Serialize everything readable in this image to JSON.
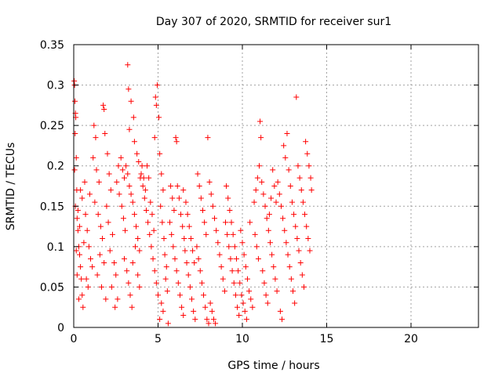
{
  "chart_data": {
    "type": "scatter",
    "title": "Day 307 of 2020, SRMTID for receiver sur1",
    "xlabel": "GPS time / hours",
    "ylabel": "SRMTID / TECUs",
    "xlim": [
      0,
      24
    ],
    "ylim": [
      0,
      0.35
    ],
    "xticks": [
      "0",
      "5",
      "10",
      "15",
      "20"
    ],
    "yticks": [
      "0",
      "0.05",
      "0.1",
      "0.15",
      "0.2",
      "0.25",
      "0.3",
      "0.35"
    ],
    "grid": true,
    "marker": "plus",
    "color": "#ff0000",
    "series": [
      {
        "points": [
          [
            0.03,
            0.305
          ],
          [
            0.05,
            0.3
          ],
          [
            0.07,
            0.28
          ],
          [
            0.1,
            0.265
          ],
          [
            0.12,
            0.26
          ],
          [
            0.08,
            0.24
          ],
          [
            0.15,
            0.21
          ],
          [
            0.05,
            0.195
          ],
          [
            0.18,
            0.17
          ],
          [
            0.1,
            0.15
          ],
          [
            0.2,
            0.135
          ],
          [
            0.25,
            0.12
          ],
          [
            0.3,
            0.1
          ],
          [
            0.15,
            0.095
          ],
          [
            0.35,
            0.09
          ],
          [
            0.4,
            0.075
          ],
          [
            0.2,
            0.065
          ],
          [
            0.45,
            0.06
          ],
          [
            0.5,
            0.04
          ],
          [
            0.3,
            0.035
          ],
          [
            0.55,
            0.025
          ],
          [
            0.25,
            0.145
          ],
          [
            0.35,
            0.125
          ],
          [
            0.6,
            0.105
          ],
          [
            0.4,
            0.17
          ],
          [
            0.5,
            0.16
          ],
          [
            0.7,
            0.14
          ],
          [
            0.8,
            0.12
          ],
          [
            0.9,
            0.1
          ],
          [
            1.0,
            0.085
          ],
          [
            1.1,
            0.075
          ],
          [
            0.75,
            0.06
          ],
          [
            0.85,
            0.05
          ],
          [
            0.65,
            0.18
          ],
          [
            0.95,
            0.165
          ],
          [
            1.2,
            0.25
          ],
          [
            1.3,
            0.235
          ],
          [
            1.15,
            0.21
          ],
          [
            1.35,
            0.195
          ],
          [
            1.5,
            0.18
          ],
          [
            1.25,
            0.155
          ],
          [
            1.45,
            0.14
          ],
          [
            1.6,
            0.125
          ],
          [
            1.7,
            0.11
          ],
          [
            1.55,
            0.09
          ],
          [
            1.8,
            0.08
          ],
          [
            1.4,
            0.065
          ],
          [
            1.65,
            0.05
          ],
          [
            1.9,
            0.035
          ],
          [
            1.75,
            0.275
          ],
          [
            1.8,
            0.27
          ],
          [
            1.85,
            0.24
          ],
          [
            2.0,
            0.215
          ],
          [
            2.1,
            0.19
          ],
          [
            2.2,
            0.17
          ],
          [
            1.95,
            0.15
          ],
          [
            2.05,
            0.13
          ],
          [
            2.3,
            0.115
          ],
          [
            2.15,
            0.095
          ],
          [
            2.4,
            0.08
          ],
          [
            2.5,
            0.065
          ],
          [
            2.25,
            0.05
          ],
          [
            2.6,
            0.035
          ],
          [
            2.45,
            0.025
          ],
          [
            2.7,
            0.165
          ],
          [
            2.55,
            0.18
          ],
          [
            2.65,
            0.2
          ],
          [
            2.8,
            0.21
          ],
          [
            2.9,
            0.195
          ],
          [
            3.0,
            0.185
          ],
          [
            3.1,
            0.2
          ],
          [
            3.2,
            0.19
          ],
          [
            3.3,
            0.175
          ],
          [
            3.4,
            0.165
          ],
          [
            3.5,
            0.155
          ],
          [
            3.6,
            0.14
          ],
          [
            3.7,
            0.125
          ],
          [
            3.8,
            0.11
          ],
          [
            3.9,
            0.095
          ],
          [
            3.0,
            0.085
          ],
          [
            3.15,
            0.07
          ],
          [
            3.25,
            0.055
          ],
          [
            3.35,
            0.04
          ],
          [
            3.45,
            0.025
          ],
          [
            3.2,
            0.325
          ],
          [
            3.25,
            0.295
          ],
          [
            3.4,
            0.28
          ],
          [
            3.55,
            0.26
          ],
          [
            3.3,
            0.245
          ],
          [
            3.6,
            0.23
          ],
          [
            3.75,
            0.215
          ],
          [
            3.85,
            0.205
          ],
          [
            3.95,
            0.185
          ],
          [
            2.85,
            0.15
          ],
          [
            2.95,
            0.135
          ],
          [
            3.05,
            0.12
          ],
          [
            3.65,
            0.1
          ],
          [
            3.5,
            0.08
          ],
          [
            3.8,
            0.065
          ],
          [
            3.9,
            0.05
          ],
          [
            4.0,
            0.19
          ],
          [
            4.1,
            0.175
          ],
          [
            4.2,
            0.16
          ],
          [
            4.3,
            0.145
          ],
          [
            4.4,
            0.13
          ],
          [
            4.5,
            0.115
          ],
          [
            4.6,
            0.1
          ],
          [
            4.7,
            0.085
          ],
          [
            4.8,
            0.07
          ],
          [
            4.9,
            0.055
          ],
          [
            5.0,
            0.04
          ],
          [
            4.05,
            0.2
          ],
          [
            4.15,
            0.185
          ],
          [
            4.25,
            0.17
          ],
          [
            4.35,
            0.2
          ],
          [
            4.45,
            0.185
          ],
          [
            4.55,
            0.155
          ],
          [
            4.65,
            0.14
          ],
          [
            4.75,
            0.12
          ],
          [
            4.85,
            0.285
          ],
          [
            4.9,
            0.275
          ],
          [
            4.95,
            0.3
          ],
          [
            5.05,
            0.26
          ],
          [
            4.8,
            0.235
          ],
          [
            5.1,
            0.215
          ],
          [
            5.2,
            0.19
          ],
          [
            5.3,
            0.17
          ],
          [
            5.15,
            0.15
          ],
          [
            5.25,
            0.13
          ],
          [
            5.35,
            0.11
          ],
          [
            5.4,
            0.09
          ],
          [
            5.5,
            0.075
          ],
          [
            5.45,
            0.06
          ],
          [
            5.55,
            0.045
          ],
          [
            5.2,
            0.03
          ],
          [
            5.3,
            0.02
          ],
          [
            5.1,
            0.01
          ],
          [
            5.6,
            0.005
          ],
          [
            5.7,
            0.13
          ],
          [
            5.8,
            0.115
          ],
          [
            5.9,
            0.1
          ],
          [
            6.0,
            0.085
          ],
          [
            6.1,
            0.07
          ],
          [
            6.2,
            0.055
          ],
          [
            6.3,
            0.04
          ],
          [
            6.4,
            0.025
          ],
          [
            6.5,
            0.015
          ],
          [
            5.75,
            0.175
          ],
          [
            5.85,
            0.16
          ],
          [
            5.95,
            0.145
          ],
          [
            6.05,
            0.235
          ],
          [
            6.1,
            0.23
          ],
          [
            6.15,
            0.175
          ],
          [
            6.25,
            0.16
          ],
          [
            6.35,
            0.14
          ],
          [
            6.45,
            0.125
          ],
          [
            6.55,
            0.11
          ],
          [
            6.6,
            0.095
          ],
          [
            6.7,
            0.08
          ],
          [
            6.8,
            0.065
          ],
          [
            6.9,
            0.05
          ],
          [
            7.0,
            0.035
          ],
          [
            7.1,
            0.02
          ],
          [
            7.2,
            0.01
          ],
          [
            6.65,
            0.155
          ],
          [
            6.75,
            0.14
          ],
          [
            6.85,
            0.125
          ],
          [
            6.95,
            0.11
          ],
          [
            7.05,
            0.095
          ],
          [
            7.15,
            0.08
          ],
          [
            6.5,
            0.17
          ],
          [
            7.3,
            0.1
          ],
          [
            7.4,
            0.085
          ],
          [
            7.5,
            0.07
          ],
          [
            7.6,
            0.055
          ],
          [
            7.7,
            0.04
          ],
          [
            7.8,
            0.025
          ],
          [
            7.9,
            0.01
          ],
          [
            8.0,
            0.005
          ],
          [
            7.35,
            0.19
          ],
          [
            7.45,
            0.175
          ],
          [
            7.55,
            0.16
          ],
          [
            7.65,
            0.145
          ],
          [
            7.75,
            0.13
          ],
          [
            7.85,
            0.115
          ],
          [
            7.95,
            0.235
          ],
          [
            8.05,
            0.18
          ],
          [
            8.15,
            0.165
          ],
          [
            8.25,
            0.15
          ],
          [
            8.35,
            0.135
          ],
          [
            8.45,
            0.12
          ],
          [
            8.55,
            0.105
          ],
          [
            8.65,
            0.09
          ],
          [
            8.75,
            0.075
          ],
          [
            8.85,
            0.06
          ],
          [
            8.95,
            0.045
          ],
          [
            8.1,
            0.03
          ],
          [
            8.2,
            0.02
          ],
          [
            8.3,
            0.01
          ],
          [
            8.4,
            0.005
          ],
          [
            9.0,
            0.13
          ],
          [
            9.1,
            0.115
          ],
          [
            9.2,
            0.1
          ],
          [
            9.3,
            0.085
          ],
          [
            9.4,
            0.07
          ],
          [
            9.5,
            0.055
          ],
          [
            9.6,
            0.04
          ],
          [
            9.7,
            0.025
          ],
          [
            9.8,
            0.015
          ],
          [
            9.05,
            0.175
          ],
          [
            9.15,
            0.16
          ],
          [
            9.25,
            0.145
          ],
          [
            9.35,
            0.13
          ],
          [
            9.45,
            0.115
          ],
          [
            9.55,
            0.1
          ],
          [
            9.65,
            0.085
          ],
          [
            9.75,
            0.07
          ],
          [
            9.85,
            0.055
          ],
          [
            9.95,
            0.04
          ],
          [
            10.05,
            0.03
          ],
          [
            10.15,
            0.02
          ],
          [
            10.25,
            0.01
          ],
          [
            9.9,
            0.12
          ],
          [
            10.0,
            0.105
          ],
          [
            10.1,
            0.09
          ],
          [
            10.2,
            0.075
          ],
          [
            10.3,
            0.06
          ],
          [
            10.4,
            0.045
          ],
          [
            10.5,
            0.035
          ],
          [
            10.6,
            0.025
          ],
          [
            10.45,
            0.13
          ],
          [
            10.7,
            0.155
          ],
          [
            10.8,
            0.17
          ],
          [
            10.9,
            0.185
          ],
          [
            11.0,
            0.2
          ],
          [
            11.05,
            0.255
          ],
          [
            11.1,
            0.235
          ],
          [
            11.15,
            0.18
          ],
          [
            11.25,
            0.165
          ],
          [
            11.35,
            0.15
          ],
          [
            11.45,
            0.135
          ],
          [
            11.55,
            0.12
          ],
          [
            11.65,
            0.105
          ],
          [
            11.75,
            0.09
          ],
          [
            11.85,
            0.075
          ],
          [
            11.95,
            0.06
          ],
          [
            12.05,
            0.045
          ],
          [
            10.75,
            0.115
          ],
          [
            10.85,
            0.1
          ],
          [
            10.95,
            0.085
          ],
          [
            11.2,
            0.07
          ],
          [
            11.3,
            0.055
          ],
          [
            11.4,
            0.04
          ],
          [
            11.5,
            0.03
          ],
          [
            11.6,
            0.14
          ],
          [
            11.7,
            0.16
          ],
          [
            11.8,
            0.195
          ],
          [
            11.9,
            0.175
          ],
          [
            12.0,
            0.155
          ],
          [
            12.1,
            0.18
          ],
          [
            12.2,
            0.165
          ],
          [
            12.3,
            0.15
          ],
          [
            12.4,
            0.135
          ],
          [
            12.5,
            0.12
          ],
          [
            12.6,
            0.105
          ],
          [
            12.7,
            0.09
          ],
          [
            12.8,
            0.075
          ],
          [
            12.9,
            0.06
          ],
          [
            13.0,
            0.045
          ],
          [
            13.1,
            0.03
          ],
          [
            12.45,
            0.225
          ],
          [
            12.55,
            0.21
          ],
          [
            12.65,
            0.24
          ],
          [
            12.75,
            0.195
          ],
          [
            12.85,
            0.175
          ],
          [
            12.95,
            0.155
          ],
          [
            13.05,
            0.14
          ],
          [
            13.15,
            0.125
          ],
          [
            13.25,
            0.11
          ],
          [
            13.35,
            0.095
          ],
          [
            13.45,
            0.08
          ],
          [
            13.55,
            0.065
          ],
          [
            13.65,
            0.05
          ],
          [
            13.2,
            0.285
          ],
          [
            13.3,
            0.2
          ],
          [
            13.4,
            0.185
          ],
          [
            13.5,
            0.17
          ],
          [
            13.6,
            0.155
          ],
          [
            13.7,
            0.14
          ],
          [
            13.8,
            0.125
          ],
          [
            13.9,
            0.11
          ],
          [
            14.0,
            0.095
          ],
          [
            13.75,
            0.23
          ],
          [
            13.85,
            0.215
          ],
          [
            13.95,
            0.2
          ],
          [
            14.05,
            0.185
          ],
          [
            14.1,
            0.17
          ],
          [
            12.35,
            0.01
          ],
          [
            12.25,
            0.02
          ]
        ]
      }
    ]
  }
}
